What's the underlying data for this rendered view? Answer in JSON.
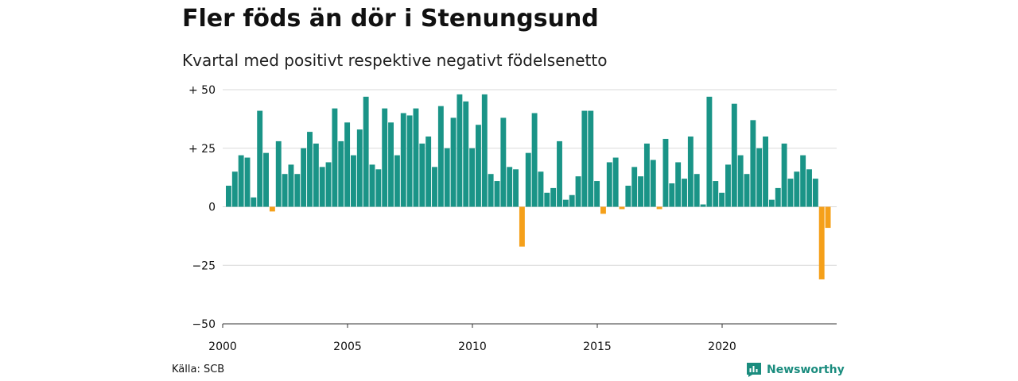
{
  "title": "Fler föds än dör i Stenungsund",
  "subtitle": "Kvartal med positivt respektive negativt födelsenetto",
  "source": "Källa: SCB",
  "brand": "Newsworthy",
  "colors": {
    "positive": "#1a9487",
    "negative": "#f5a01a",
    "grid": "#d9d9d9",
    "brand": "#1a8c7e"
  },
  "chart_data": {
    "type": "bar",
    "title": "Fler föds än dör i Stenungsund",
    "subtitle": "Kvartal med positivt respektive negativt födelsenetto",
    "ylim": [
      -50,
      50
    ],
    "yticks": [
      {
        "value": 50,
        "label": "+ 50"
      },
      {
        "value": 25,
        "label": "+ 25"
      },
      {
        "value": 0,
        "label": "0"
      },
      {
        "value": -25,
        "label": "−25"
      },
      {
        "value": -50,
        "label": "−50"
      }
    ],
    "xticks": [
      {
        "year": 2000,
        "label": "2000"
      },
      {
        "year": 2005,
        "label": "2005"
      },
      {
        "year": 2010,
        "label": "2010"
      },
      {
        "year": 2015,
        "label": "2015"
      },
      {
        "year": 2020,
        "label": "2020"
      }
    ],
    "x_start": "2000 Q1",
    "grid": true,
    "legend": "none",
    "values": [
      9,
      15,
      22,
      21,
      4,
      41,
      23,
      -2,
      28,
      14,
      18,
      14,
      25,
      32,
      27,
      17,
      19,
      42,
      28,
      36,
      22,
      33,
      47,
      18,
      16,
      42,
      36,
      22,
      40,
      39,
      42,
      27,
      30,
      17,
      43,
      25,
      38,
      48,
      45,
      25,
      35,
      48,
      14,
      11,
      38,
      17,
      16,
      -17,
      23,
      40,
      15,
      6,
      8,
      28,
      3,
      5,
      13,
      41,
      41,
      11,
      -3,
      19,
      21,
      -1,
      9,
      17,
      13,
      27,
      20,
      -1,
      29,
      10,
      19,
      12,
      30,
      14,
      1,
      47,
      11,
      6,
      18,
      44,
      22,
      14,
      37,
      25,
      30,
      3,
      8,
      27,
      12,
      15,
      22,
      16,
      12,
      -31,
      -9
    ]
  }
}
